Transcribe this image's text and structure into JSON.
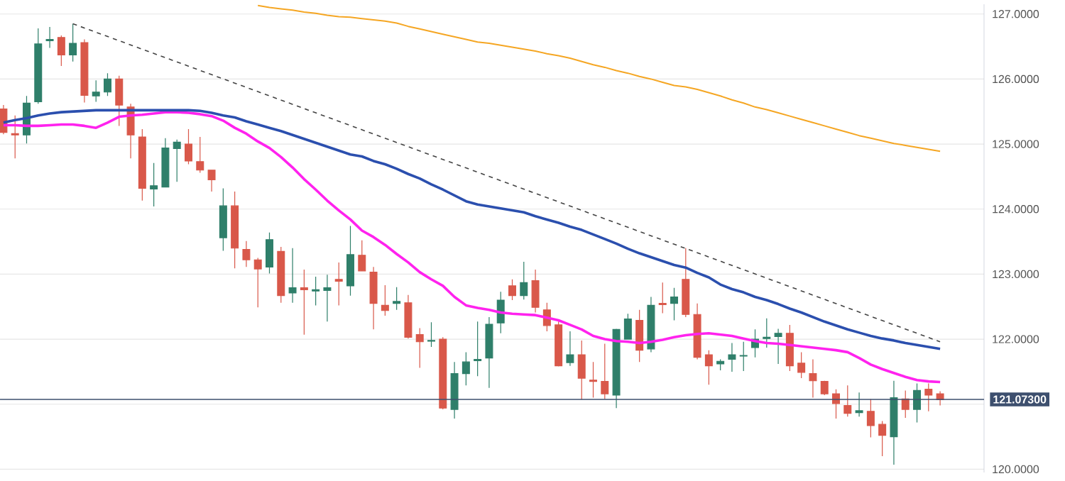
{
  "chart_data": {
    "type": "candlestick",
    "categories": [
      null,
      null,
      null,
      null,
      null,
      null,
      null,
      null,
      null,
      null,
      null,
      null,
      null,
      null,
      null,
      null,
      null,
      null,
      null,
      null,
      null,
      null,
      null,
      null,
      null,
      null,
      null,
      null,
      null,
      null,
      null,
      null,
      null,
      null,
      null,
      null,
      null,
      null,
      null,
      null,
      null,
      null,
      null,
      null,
      null,
      null,
      null,
      null,
      null,
      null,
      null,
      null,
      null,
      null,
      null,
      null,
      null,
      null,
      null,
      null,
      null,
      null,
      null,
      null,
      null,
      null,
      null,
      null,
      null,
      null,
      null,
      null,
      null,
      null,
      null,
      null,
      null,
      null,
      null,
      null,
      null,
      null
    ],
    "ohlc": [
      [
        125.54,
        125.6,
        125.15,
        125.18
      ],
      [
        125.16,
        125.44,
        124.78,
        125.14
      ],
      [
        125.14,
        125.74,
        125.01,
        125.63
      ],
      [
        125.65,
        126.78,
        125.62,
        126.54
      ],
      [
        126.59,
        126.8,
        126.48,
        126.61
      ],
      [
        126.64,
        126.67,
        126.2,
        126.37
      ],
      [
        126.37,
        126.85,
        126.27,
        126.55
      ],
      [
        126.56,
        126.61,
        125.64,
        125.75
      ],
      [
        125.74,
        125.98,
        125.65,
        125.8
      ],
      [
        125.8,
        126.09,
        125.74,
        126.0
      ],
      [
        126.0,
        126.05,
        125.28,
        125.6
      ],
      [
        125.57,
        125.62,
        124.78,
        125.14
      ],
      [
        125.11,
        125.23,
        124.13,
        124.32
      ],
      [
        124.31,
        124.71,
        124.04,
        124.36
      ],
      [
        124.34,
        125.09,
        124.34,
        124.94
      ],
      [
        124.93,
        125.07,
        124.42,
        125.03
      ],
      [
        125.0,
        125.23,
        124.69,
        124.74
      ],
      [
        124.73,
        125.11,
        124.56,
        124.6
      ],
      [
        124.6,
        124.6,
        124.27,
        124.45
      ],
      [
        123.56,
        124.32,
        123.36,
        124.05
      ],
      [
        124.05,
        124.27,
        123.09,
        123.4
      ],
      [
        123.38,
        123.51,
        123.11,
        123.22
      ],
      [
        123.22,
        123.25,
        122.49,
        123.08
      ],
      [
        123.11,
        123.64,
        123.01,
        123.53
      ],
      [
        123.35,
        123.42,
        122.56,
        122.67
      ],
      [
        122.71,
        123.4,
        122.56,
        122.79
      ],
      [
        122.79,
        123.07,
        122.07,
        122.76
      ],
      [
        122.74,
        122.96,
        122.52,
        122.76
      ],
      [
        122.75,
        122.99,
        122.27,
        122.79
      ],
      [
        122.92,
        123.18,
        122.52,
        122.89
      ],
      [
        122.82,
        123.74,
        122.67,
        123.3
      ],
      [
        123.29,
        123.52,
        123.05,
        123.05
      ],
      [
        123.03,
        123.11,
        122.15,
        122.55
      ],
      [
        122.52,
        122.83,
        122.36,
        122.44
      ],
      [
        122.55,
        122.8,
        122.45,
        122.58
      ],
      [
        122.56,
        122.68,
        122.01,
        122.03
      ],
      [
        122.07,
        122.17,
        121.56,
        121.96
      ],
      [
        121.97,
        122.26,
        121.88,
        121.98
      ],
      [
        122.0,
        122.03,
        120.92,
        120.94
      ],
      [
        120.92,
        121.65,
        120.78,
        121.47
      ],
      [
        121.47,
        121.8,
        121.29,
        121.65
      ],
      [
        121.67,
        122.27,
        121.43,
        121.69
      ],
      [
        121.71,
        122.34,
        121.25,
        122.23
      ],
      [
        122.25,
        122.73,
        122.09,
        122.6
      ],
      [
        122.82,
        122.92,
        122.6,
        122.67
      ],
      [
        122.67,
        123.19,
        122.61,
        122.87
      ],
      [
        122.9,
        123.07,
        122.41,
        122.49
      ],
      [
        122.45,
        122.56,
        122.12,
        122.21
      ],
      [
        122.22,
        122.27,
        121.58,
        121.59
      ],
      [
        121.64,
        122.12,
        121.59,
        121.76
      ],
      [
        121.76,
        121.98,
        121.07,
        121.4
      ],
      [
        121.37,
        121.65,
        121.1,
        121.35
      ],
      [
        121.35,
        121.93,
        121.08,
        121.16
      ],
      [
        121.14,
        122.16,
        120.94,
        122.15
      ],
      [
        122.0,
        122.39,
        122.0,
        122.31
      ],
      [
        122.29,
        122.45,
        121.65,
        121.83
      ],
      [
        121.85,
        122.65,
        121.8,
        122.52
      ],
      [
        122.55,
        122.87,
        122.4,
        122.53
      ],
      [
        122.55,
        122.79,
        122.29,
        122.65
      ],
      [
        122.92,
        123.4,
        122.34,
        122.38
      ],
      [
        122.38,
        122.55,
        121.69,
        121.72
      ],
      [
        121.76,
        121.83,
        121.3,
        121.59
      ],
      [
        121.62,
        121.69,
        121.52,
        121.66
      ],
      [
        121.69,
        121.94,
        121.5,
        121.76
      ],
      [
        121.74,
        121.96,
        121.51,
        121.75
      ],
      [
        121.87,
        122.15,
        121.72,
        122.0
      ],
      [
        122.01,
        122.32,
        121.87,
        122.03
      ],
      [
        122.04,
        122.16,
        121.62,
        122.09
      ],
      [
        122.09,
        122.22,
        121.51,
        121.59
      ],
      [
        121.63,
        121.8,
        121.4,
        121.49
      ],
      [
        121.47,
        121.69,
        121.1,
        121.36
      ],
      [
        121.35,
        121.36,
        121.14,
        121.16
      ],
      [
        121.16,
        121.23,
        120.78,
        121.01
      ],
      [
        120.98,
        121.29,
        120.81,
        120.86
      ],
      [
        120.87,
        121.18,
        120.81,
        120.9
      ],
      [
        120.89,
        121.08,
        120.49,
        120.67
      ],
      [
        120.69,
        120.74,
        120.2,
        120.52
      ],
      [
        120.5,
        121.36,
        120.07,
        121.1
      ],
      [
        121.08,
        121.21,
        120.79,
        120.92
      ],
      [
        120.92,
        121.32,
        120.72,
        121.21
      ],
      [
        121.23,
        121.32,
        120.89,
        121.14
      ],
      [
        121.16,
        121.2,
        120.98,
        121.07
      ]
    ],
    "series": [
      {
        "type": "line",
        "color": "#ff22ee",
        "values": [
          125.29,
          125.29,
          125.28,
          125.28,
          125.29,
          125.3,
          125.3,
          125.28,
          125.25,
          125.33,
          125.42,
          125.44,
          125.45,
          125.47,
          125.49,
          125.49,
          125.48,
          125.46,
          125.43,
          125.36,
          125.25,
          125.16,
          125.04,
          124.94,
          124.8,
          124.64,
          124.46,
          124.3,
          124.13,
          123.98,
          123.84,
          123.67,
          123.57,
          123.45,
          123.31,
          123.18,
          123.03,
          122.92,
          122.82,
          122.65,
          122.52,
          122.48,
          122.45,
          122.41,
          122.39,
          122.38,
          122.37,
          122.33,
          122.29,
          122.22,
          122.15,
          122.05,
          122.0,
          121.97,
          121.96,
          121.94,
          121.96,
          121.99,
          122.03,
          122.06,
          122.08,
          122.09,
          122.07,
          122.05,
          122.01,
          121.97,
          121.94,
          121.93,
          121.91,
          121.89,
          121.87,
          121.85,
          121.83,
          121.8,
          121.71,
          121.61,
          121.54,
          121.48,
          121.42,
          121.37,
          121.35,
          121.34
        ]
      },
      {
        "type": "line",
        "color": "#2b4fae",
        "values": [
          125.33,
          125.37,
          125.4,
          125.44,
          125.47,
          125.49,
          125.5,
          125.51,
          125.52,
          125.52,
          125.52,
          125.52,
          125.52,
          125.52,
          125.52,
          125.52,
          125.52,
          125.51,
          125.48,
          125.44,
          125.41,
          125.35,
          125.3,
          125.25,
          125.2,
          125.14,
          125.08,
          125.02,
          124.96,
          124.9,
          124.84,
          124.81,
          124.74,
          124.69,
          124.62,
          124.54,
          124.47,
          124.38,
          124.3,
          124.21,
          124.12,
          124.07,
          124.04,
          124.01,
          123.98,
          123.95,
          123.89,
          123.84,
          123.79,
          123.73,
          123.68,
          123.61,
          123.54,
          123.47,
          123.39,
          123.32,
          123.26,
          123.2,
          123.14,
          123.1,
          123.02,
          122.95,
          122.84,
          122.77,
          122.72,
          122.65,
          122.6,
          122.54,
          122.47,
          122.41,
          122.34,
          122.27,
          122.21,
          122.15,
          122.1,
          122.05,
          122.01,
          121.98,
          121.94,
          121.91,
          121.88,
          121.85
        ]
      },
      {
        "type": "line",
        "color": "#f5a623",
        "values": [
          null,
          null,
          null,
          null,
          null,
          null,
          null,
          null,
          null,
          null,
          null,
          null,
          null,
          null,
          null,
          null,
          null,
          null,
          null,
          null,
          null,
          null,
          127.13,
          127.1,
          127.08,
          127.06,
          127.03,
          127.01,
          126.98,
          126.96,
          126.95,
          126.93,
          126.91,
          126.89,
          126.86,
          126.81,
          126.77,
          126.73,
          126.69,
          126.65,
          126.61,
          126.57,
          126.55,
          126.52,
          126.49,
          126.46,
          126.43,
          126.39,
          126.36,
          126.32,
          126.27,
          126.22,
          126.18,
          126.13,
          126.09,
          126.04,
          126.0,
          125.95,
          125.9,
          125.88,
          125.84,
          125.79,
          125.74,
          125.68,
          125.63,
          125.57,
          125.53,
          125.48,
          125.43,
          125.38,
          125.33,
          125.28,
          125.23,
          125.18,
          125.13,
          125.09,
          125.05,
          125.01,
          124.98,
          124.95,
          124.92,
          124.89
        ]
      },
      {
        "type": "line",
        "color": "#444444",
        "line_style": "dashed",
        "values": [
          null,
          null,
          null,
          null,
          null,
          null,
          126.85,
          null,
          null,
          null,
          null,
          null,
          null,
          null,
          null,
          null,
          null,
          null,
          null,
          null,
          null,
          null,
          null,
          null,
          null,
          null,
          null,
          null,
          null,
          null,
          null,
          null,
          null,
          null,
          null,
          null,
          null,
          null,
          null,
          null,
          null,
          null,
          null,
          null,
          null,
          null,
          null,
          null,
          null,
          null,
          null,
          null,
          null,
          null,
          null,
          null,
          null,
          null,
          null,
          null,
          null,
          null,
          null,
          null,
          null,
          null,
          null,
          null,
          null,
          null,
          null,
          null,
          null,
          null,
          null,
          null,
          null,
          null,
          null,
          null,
          null,
          121.96
        ]
      }
    ],
    "ylim": [
      119.95,
      127.15
    ],
    "yticks": [
      {
        "value": 120,
        "label": "120.0000"
      },
      {
        "value": 121,
        "label": null
      },
      {
        "value": 122,
        "label": "122.0000"
      },
      {
        "value": 123,
        "label": "123.0000"
      },
      {
        "value": 124,
        "label": "124.0000"
      },
      {
        "value": 125,
        "label": "125.0000"
      },
      {
        "value": 126,
        "label": "126.0000"
      },
      {
        "value": 127,
        "label": "127.0000"
      }
    ],
    "grid": "y",
    "tick_labels": "y",
    "ref_lines": [
      {
        "axis": "y",
        "value": 121.073,
        "label": "121.07300",
        "color": "#3d4f6e"
      }
    ]
  }
}
